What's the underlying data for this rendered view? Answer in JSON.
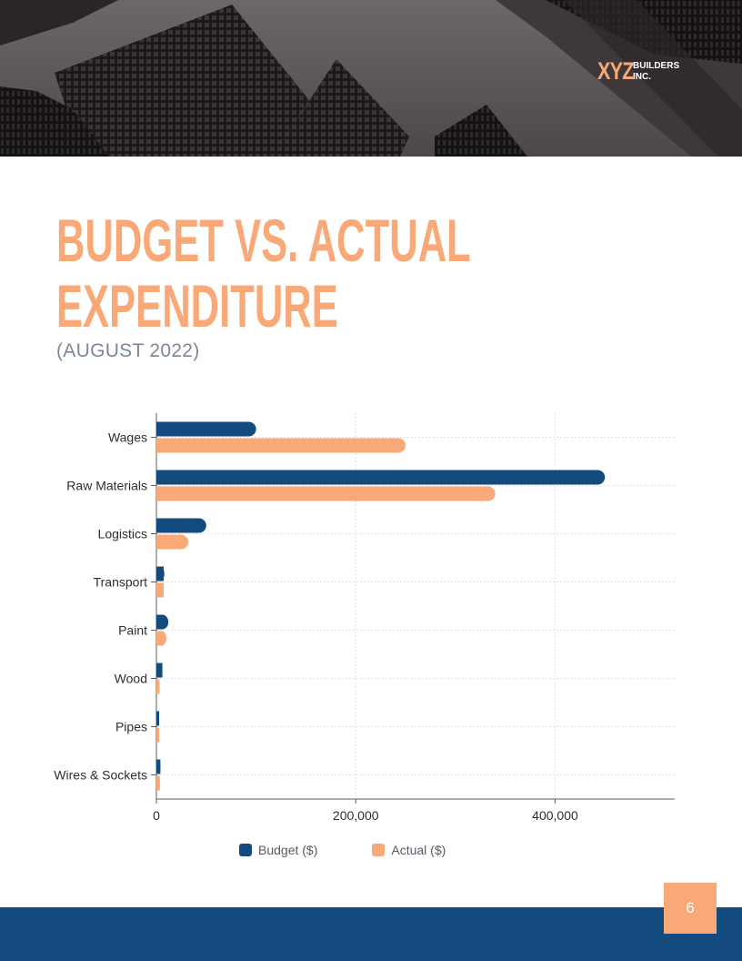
{
  "header": {
    "logo_mark": "XYZ",
    "logo_line1": "BUILDERS",
    "logo_line2": "INC."
  },
  "title": {
    "line1": "BUDGET VS. ACTUAL",
    "line2": "EXPENDITURE",
    "subtitle": "(AUGUST 2022)"
  },
  "colors": {
    "accent": "#f9a877",
    "navy": "#134b7e",
    "budget": "#134b7e",
    "actual": "#f9a877"
  },
  "chart_data": {
    "type": "bar",
    "orientation": "horizontal",
    "categories": [
      "Wages",
      "Raw Materials",
      "Logistics",
      "Transport",
      "Paint",
      "Wood",
      "Pipes",
      "Wires & Sockets"
    ],
    "series": [
      {
        "name": "Budget ($)",
        "values": [
          100000,
          450000,
          50000,
          8000,
          12000,
          6000,
          2500,
          4000
        ]
      },
      {
        "name": "Actual ($)",
        "values": [
          250000,
          340000,
          32000,
          7500,
          10000,
          3000,
          2000,
          3500
        ]
      }
    ],
    "xticks": [
      0,
      200000,
      400000
    ],
    "xtick_labels": [
      "0",
      "200,000",
      "400,000"
    ],
    "xlim": [
      0,
      520000
    ],
    "grid": true,
    "legend": "bottom"
  },
  "legend": {
    "budget_label": "Budget ($)",
    "actual_label": "Actual ($)"
  },
  "footer": {
    "page_number": "6"
  }
}
